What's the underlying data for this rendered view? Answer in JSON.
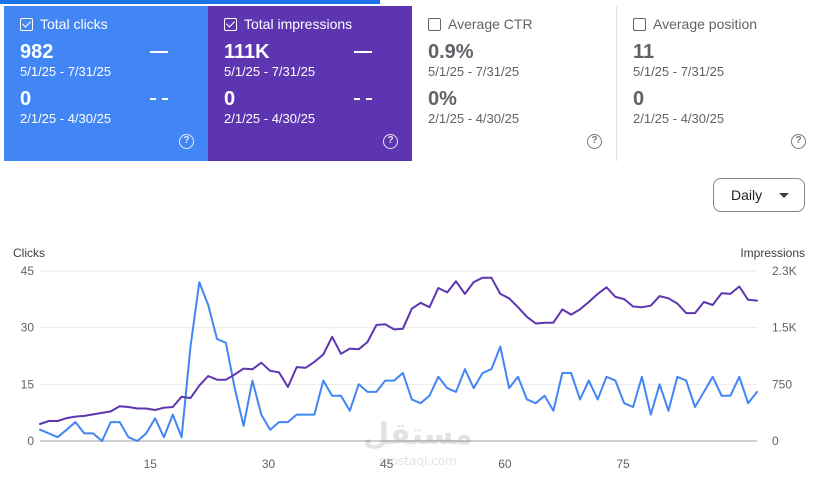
{
  "cards": [
    {
      "label": "Total clicks",
      "checked": true,
      "value_current": "982",
      "range_current": "5/1/25 - 7/31/25",
      "value_previous": "0",
      "range_previous": "2/1/25 - 4/30/25",
      "help": "?"
    },
    {
      "label": "Total impressions",
      "checked": true,
      "value_current": "111K",
      "range_current": "5/1/25 - 7/31/25",
      "value_previous": "0",
      "range_previous": "2/1/25 - 4/30/25",
      "help": "?"
    },
    {
      "label": "Average CTR",
      "checked": false,
      "value_current": "0.9%",
      "range_current": "5/1/25 - 7/31/25",
      "value_previous": "0%",
      "range_previous": "2/1/25 - 4/30/25",
      "help": "?"
    },
    {
      "label": "Average position",
      "checked": false,
      "value_current": "11",
      "range_current": "5/1/25 - 7/31/25",
      "value_previous": "0",
      "range_previous": "2/1/25 - 4/30/25",
      "help": "?"
    }
  ],
  "granularity": {
    "label": "Daily"
  },
  "colors": {
    "clicks": "#4285f4",
    "impressions": "#5e35b1"
  },
  "watermark": {
    "arabic": "مستقل",
    "latin": "mostaqi.com"
  },
  "chart_data": {
    "type": "line",
    "left_axis": {
      "title": "Clicks",
      "ticks": [
        "45",
        "30",
        "15",
        "0"
      ],
      "range": [
        0,
        45
      ]
    },
    "right_axis": {
      "title": "Impressions",
      "ticks": [
        "2.3K",
        "1.5K",
        "750",
        "0"
      ],
      "range": [
        0,
        2300
      ]
    },
    "x_ticks": [
      "15",
      "30",
      "45",
      "60",
      "75"
    ],
    "x_range": [
      1,
      92
    ],
    "grid": true,
    "series": [
      {
        "axis": "left",
        "color": "#4285f4",
        "values": [
          3,
          2,
          1,
          3,
          5,
          2,
          2,
          0,
          5,
          5,
          1,
          0,
          2,
          6,
          1,
          7,
          1,
          25,
          42,
          36,
          27,
          26,
          14,
          4,
          16,
          7,
          3,
          5,
          5,
          7,
          7,
          7,
          16,
          12,
          12,
          8,
          15,
          13,
          13,
          16,
          16,
          18,
          11,
          10,
          12,
          17,
          14,
          13,
          19,
          14,
          18,
          19,
          25,
          14,
          17,
          11,
          10,
          12,
          8,
          18,
          18,
          11,
          16,
          11,
          17,
          16,
          10,
          9,
          17,
          7,
          15,
          8,
          17,
          16,
          9,
          13,
          17,
          12,
          12,
          17,
          10,
          13
        ]
      },
      {
        "axis": "right",
        "color": "#5e35b1",
        "values": [
          230,
          270,
          270,
          310,
          330,
          340,
          360,
          380,
          400,
          470,
          460,
          440,
          440,
          420,
          450,
          460,
          600,
          580,
          750,
          880,
          830,
          830,
          900,
          980,
          970,
          1060,
          950,
          930,
          730,
          1000,
          990,
          1070,
          1170,
          1410,
          1180,
          1250,
          1240,
          1340,
          1570,
          1580,
          1510,
          1520,
          1790,
          1870,
          1810,
          2070,
          2010,
          2160,
          1990,
          2150,
          2210,
          2210,
          1990,
          1930,
          1810,
          1680,
          1590,
          1600,
          1600,
          1780,
          1710,
          1780,
          1880,
          1990,
          2080,
          1950,
          1920,
          1820,
          1810,
          1830,
          1960,
          1930,
          1860,
          1730,
          1730,
          1880,
          1840,
          2000,
          1990,
          2090,
          1910,
          1900
        ]
      }
    ]
  }
}
